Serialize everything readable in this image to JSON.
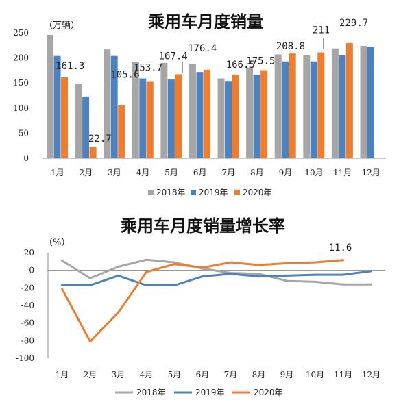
{
  "months": [
    "1月",
    "2月",
    "3月",
    "4月",
    "5月",
    "6月",
    "7月",
    "8月",
    "9月",
    "10月",
    "11月",
    "12月"
  ],
  "chart_data": [
    {
      "type": "bar",
      "title": "乘用车月度销量",
      "ylabel": "（万辆）",
      "ylim": [
        0,
        250
      ],
      "yticks": [
        0,
        50,
        100,
        150,
        200,
        250
      ],
      "categories": [
        "1月",
        "2月",
        "3月",
        "4月",
        "5月",
        "6月",
        "7月",
        "8月",
        "9月",
        "10月",
        "11月",
        "12月"
      ],
      "series": [
        {
          "name": "2018年",
          "color": "#a6a6a6",
          "values": [
            246,
            148,
            217,
            192,
            190,
            188,
            159,
            181,
            207,
            205,
            219,
            224
          ]
        },
        {
          "name": "2019年",
          "color": "#4f81bd",
          "values": [
            204,
            123,
            204,
            159,
            157,
            172,
            154,
            166,
            193,
            193,
            205,
            222
          ]
        },
        {
          "name": "2020年",
          "color": "#ed7d31",
          "values": [
            161.3,
            22.7,
            105.6,
            153.7,
            167.4,
            176.4,
            166.5,
            175.5,
            208.8,
            211,
            229.7,
            null
          ]
        }
      ],
      "data_labels": [
        {
          "series": 2,
          "index": 0,
          "text": "161.3"
        },
        {
          "series": 2,
          "index": 1,
          "text": "22.7"
        },
        {
          "series": 2,
          "index": 2,
          "text": "105.6"
        },
        {
          "series": 2,
          "index": 3,
          "text": "153.7"
        },
        {
          "series": 2,
          "index": 4,
          "text": "167.4"
        },
        {
          "series": 2,
          "index": 5,
          "text": "176.4"
        },
        {
          "series": 2,
          "index": 6,
          "text": "166.5"
        },
        {
          "series": 2,
          "index": 7,
          "text": "175.5"
        },
        {
          "series": 2,
          "index": 8,
          "text": "208.8"
        },
        {
          "series": 2,
          "index": 9,
          "text": "211"
        },
        {
          "series": 2,
          "index": 10,
          "text": "229.7"
        }
      ],
      "legend_position": "bottom"
    },
    {
      "type": "line",
      "title": "乘用车月度销量增长率",
      "ylabel": "（%）",
      "ylim": [
        -100,
        20
      ],
      "yticks": [
        20,
        0,
        -20,
        -40,
        -60,
        -80,
        -100
      ],
      "categories": [
        "1月",
        "2月",
        "3月",
        "4月",
        "5月",
        "6月",
        "7月",
        "8月",
        "9月",
        "10月",
        "11月",
        "12月"
      ],
      "series": [
        {
          "name": "2018年",
          "color": "#a6a6a6",
          "values": [
            11,
            -9,
            4,
            12,
            9,
            2,
            -3,
            -4,
            -12,
            -13,
            -16,
            -16
          ]
        },
        {
          "name": "2019年",
          "color": "#4f81bd",
          "values": [
            -17,
            -17,
            -6,
            -17,
            -17,
            -7,
            -4,
            -7,
            -6,
            -5,
            -5,
            -1
          ]
        },
        {
          "name": "2020年",
          "color": "#ed7d31",
          "values": [
            -21,
            -81,
            -48,
            -2,
            7,
            3,
            9,
            6,
            8,
            9,
            11.6,
            null
          ]
        }
      ],
      "data_labels": [
        {
          "series": 2,
          "index": 10,
          "text": "11.6"
        }
      ],
      "legend_position": "bottom"
    }
  ]
}
